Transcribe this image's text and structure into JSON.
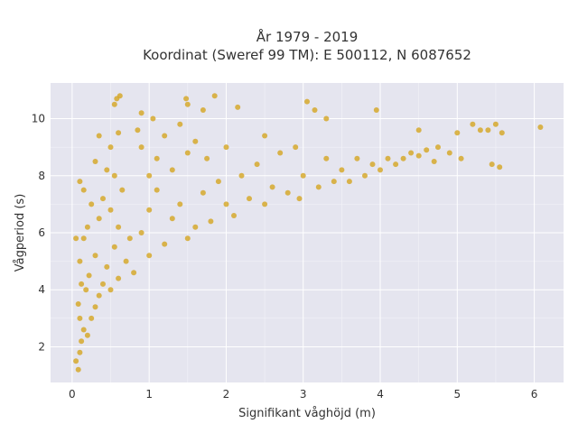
{
  "chart_data": {
    "type": "scatter",
    "title_line1": "År 1979 - 2019",
    "title_line2": "Koordinat (Sweref 99 TM): E 500112, N 6087652",
    "xlabel": "Signifikant våghöjd (m)",
    "ylabel": "Vågperiod (s)",
    "xlim": [
      -0.28,
      6.38
    ],
    "ylim": [
      0.75,
      11.25
    ],
    "x_ticks": [
      0,
      1,
      2,
      3,
      4,
      5,
      6
    ],
    "x_tick_labels": [
      "0",
      "1",
      "2",
      "3",
      "4",
      "5",
      "6"
    ],
    "y_ticks": [
      2,
      4,
      6,
      8,
      10
    ],
    "y_tick_labels": [
      "2",
      "4",
      "6",
      "8",
      "10"
    ],
    "grid": true,
    "series": [
      {
        "marker_color": "#d4a520",
        "points": [
          [
            0.05,
            1.5
          ],
          [
            0.08,
            1.2
          ],
          [
            0.1,
            1.8
          ],
          [
            0.12,
            2.2
          ],
          [
            0.15,
            2.6
          ],
          [
            0.1,
            3.0
          ],
          [
            0.08,
            3.5
          ],
          [
            0.2,
            2.4
          ],
          [
            0.25,
            3.0
          ],
          [
            0.3,
            3.4
          ],
          [
            0.18,
            4.0
          ],
          [
            0.22,
            4.5
          ],
          [
            0.35,
            3.8
          ],
          [
            0.4,
            4.2
          ],
          [
            0.1,
            5.0
          ],
          [
            0.15,
            5.8
          ],
          [
            0.05,
            5.8
          ],
          [
            0.2,
            6.2
          ],
          [
            0.3,
            5.2
          ],
          [
            0.45,
            4.8
          ],
          [
            0.5,
            4.0
          ],
          [
            0.55,
            5.5
          ],
          [
            0.6,
            4.4
          ],
          [
            0.35,
            6.5
          ],
          [
            0.25,
            7.0
          ],
          [
            0.4,
            7.2
          ],
          [
            0.15,
            7.5
          ],
          [
            0.1,
            7.8
          ],
          [
            0.5,
            6.8
          ],
          [
            0.6,
            6.2
          ],
          [
            0.7,
            5.0
          ],
          [
            0.75,
            5.8
          ],
          [
            0.8,
            4.6
          ],
          [
            0.65,
            7.5
          ],
          [
            0.55,
            8.0
          ],
          [
            0.45,
            8.2
          ],
          [
            0.3,
            8.5
          ],
          [
            0.5,
            9.0
          ],
          [
            0.6,
            9.5
          ],
          [
            0.35,
            9.4
          ],
          [
            0.55,
            10.5
          ],
          [
            0.58,
            10.7
          ],
          [
            0.62,
            10.8
          ],
          [
            0.9,
            6.0
          ],
          [
            1.0,
            5.2
          ],
          [
            1.0,
            6.8
          ],
          [
            1.1,
            7.5
          ],
          [
            1.2,
            5.6
          ],
          [
            1.0,
            8.0
          ],
          [
            1.1,
            8.6
          ],
          [
            0.9,
            9.0
          ],
          [
            0.85,
            9.6
          ],
          [
            0.9,
            10.2
          ],
          [
            1.05,
            10.0
          ],
          [
            1.2,
            9.4
          ],
          [
            1.3,
            6.5
          ],
          [
            1.4,
            7.0
          ],
          [
            1.5,
            5.8
          ],
          [
            1.3,
            8.2
          ],
          [
            1.5,
            8.8
          ],
          [
            1.6,
            6.2
          ],
          [
            1.7,
            7.4
          ],
          [
            1.4,
            9.8
          ],
          [
            1.5,
            10.5
          ],
          [
            1.48,
            10.7
          ],
          [
            1.6,
            9.2
          ],
          [
            1.8,
            6.4
          ],
          [
            1.9,
            7.8
          ],
          [
            1.75,
            8.6
          ],
          [
            1.85,
            10.8
          ],
          [
            1.7,
            10.3
          ],
          [
            2.0,
            7.0
          ],
          [
            2.1,
            6.6
          ],
          [
            2.2,
            8.0
          ],
          [
            2.0,
            9.0
          ],
          [
            2.15,
            10.4
          ],
          [
            2.3,
            7.2
          ],
          [
            2.4,
            8.4
          ],
          [
            2.5,
            7.0
          ],
          [
            2.5,
            9.4
          ],
          [
            2.6,
            7.6
          ],
          [
            2.7,
            8.8
          ],
          [
            2.8,
            7.4
          ],
          [
            2.9,
            9.0
          ],
          [
            2.95,
            7.2
          ],
          [
            3.0,
            8.0
          ],
          [
            3.05,
            10.6
          ],
          [
            3.15,
            10.3
          ],
          [
            3.2,
            7.6
          ],
          [
            3.3,
            8.6
          ],
          [
            3.3,
            10.0
          ],
          [
            3.4,
            7.8
          ],
          [
            3.5,
            8.2
          ],
          [
            3.6,
            7.8
          ],
          [
            3.7,
            8.6
          ],
          [
            3.8,
            8.0
          ],
          [
            3.9,
            8.4
          ],
          [
            3.95,
            10.3
          ],
          [
            4.0,
            8.2
          ],
          [
            4.1,
            8.6
          ],
          [
            4.2,
            8.4
          ],
          [
            4.3,
            8.6
          ],
          [
            4.4,
            8.8
          ],
          [
            4.5,
            8.7
          ],
          [
            4.6,
            8.9
          ],
          [
            4.7,
            8.5
          ],
          [
            4.75,
            9.0
          ],
          [
            4.5,
            9.6
          ],
          [
            4.9,
            8.8
          ],
          [
            5.0,
            9.5
          ],
          [
            5.05,
            8.6
          ],
          [
            5.2,
            9.8
          ],
          [
            5.3,
            9.6
          ],
          [
            5.4,
            9.6
          ],
          [
            5.5,
            9.8
          ],
          [
            5.55,
            8.3
          ],
          [
            5.45,
            8.4
          ],
          [
            5.58,
            9.5
          ],
          [
            6.08,
            9.7
          ],
          [
            0.12,
            4.2
          ]
        ]
      }
    ]
  }
}
